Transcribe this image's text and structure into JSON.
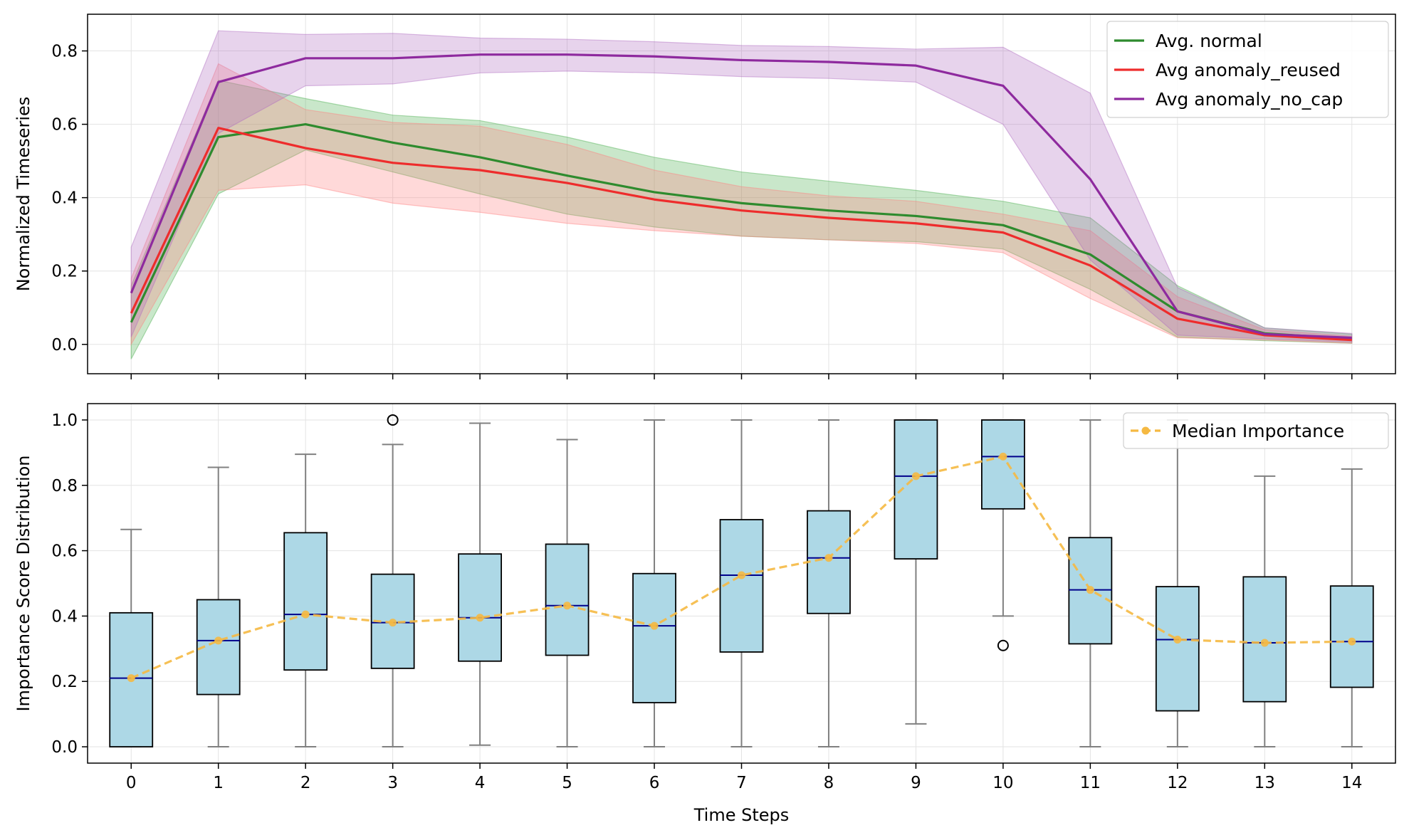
{
  "chart_data": [
    {
      "type": "line",
      "panel": "top",
      "ylabel": "Normalized Timeseries",
      "xlabel": "",
      "x": [
        0,
        1,
        2,
        3,
        4,
        5,
        6,
        7,
        8,
        9,
        10,
        11,
        12,
        13,
        14
      ],
      "xlim": [
        -0.5,
        14.5
      ],
      "ylim": [
        -0.08,
        0.9
      ],
      "yticks": [
        0.0,
        0.2,
        0.4,
        0.6,
        0.8
      ],
      "ytick_labels": [
        "0.0",
        "0.2",
        "0.4",
        "0.6",
        "0.8"
      ],
      "grid": true,
      "legend_position": "top-right",
      "series": [
        {
          "name": "Avg. normal",
          "color": "#2e8b2e",
          "band_color": "#4caf50",
          "values": [
            0.06,
            0.565,
            0.6,
            0.55,
            0.51,
            0.46,
            0.415,
            0.385,
            0.365,
            0.35,
            0.325,
            0.245,
            0.09,
            0.03,
            0.015
          ],
          "lower": [
            -0.04,
            0.41,
            0.53,
            0.47,
            0.41,
            0.355,
            0.32,
            0.295,
            0.285,
            0.28,
            0.26,
            0.15,
            0.02,
            0.01,
            0.003
          ],
          "upper": [
            0.16,
            0.72,
            0.67,
            0.625,
            0.61,
            0.565,
            0.51,
            0.47,
            0.445,
            0.42,
            0.39,
            0.345,
            0.16,
            0.045,
            0.028
          ]
        },
        {
          "name": "Avg anomaly_reused",
          "color": "#ee2c2c",
          "band_color": "#ff8080",
          "values": [
            0.085,
            0.59,
            0.535,
            0.495,
            0.475,
            0.44,
            0.395,
            0.365,
            0.345,
            0.33,
            0.305,
            0.215,
            0.07,
            0.025,
            0.012
          ],
          "lower": [
            0.0,
            0.42,
            0.435,
            0.385,
            0.36,
            0.33,
            0.31,
            0.295,
            0.285,
            0.275,
            0.25,
            0.125,
            0.018,
            0.012,
            0.003
          ],
          "upper": [
            0.18,
            0.765,
            0.64,
            0.605,
            0.595,
            0.545,
            0.475,
            0.43,
            0.405,
            0.39,
            0.355,
            0.31,
            0.13,
            0.04,
            0.022
          ]
        },
        {
          "name": "Avg anomaly_no_cap",
          "color": "#8e2a9e",
          "band_color": "#b06cc0",
          "values": [
            0.14,
            0.715,
            0.78,
            0.78,
            0.79,
            0.79,
            0.785,
            0.775,
            0.77,
            0.76,
            0.705,
            0.45,
            0.09,
            0.028,
            0.018
          ],
          "lower": [
            0.02,
            0.575,
            0.705,
            0.71,
            0.74,
            0.745,
            0.74,
            0.73,
            0.725,
            0.715,
            0.6,
            0.23,
            0.025,
            0.015,
            0.006
          ],
          "upper": [
            0.265,
            0.855,
            0.845,
            0.848,
            0.835,
            0.832,
            0.825,
            0.815,
            0.812,
            0.805,
            0.81,
            0.685,
            0.155,
            0.045,
            0.03
          ]
        }
      ]
    },
    {
      "type": "box",
      "panel": "bottom",
      "ylabel": "Importance Score Distribution",
      "xlabel": "Time Steps",
      "categories": [
        "0",
        "1",
        "2",
        "3",
        "4",
        "5",
        "6",
        "7",
        "8",
        "9",
        "10",
        "11",
        "12",
        "13",
        "14"
      ],
      "xlim": [
        -0.5,
        14.5
      ],
      "ylim": [
        -0.05,
        1.05
      ],
      "yticks": [
        0.0,
        0.2,
        0.4,
        0.6,
        0.8,
        1.0
      ],
      "ytick_labels": [
        "0.0",
        "0.2",
        "0.4",
        "0.6",
        "0.8",
        "1.0"
      ],
      "grid": true,
      "legend_position": "top-right",
      "box_fill": "#add8e6",
      "median_color": "#00008b",
      "whisker_color": "#808080",
      "boxes": [
        {
          "whislo": 0.0,
          "q1": 0.0,
          "med": 0.21,
          "q3": 0.41,
          "whishi": 0.665,
          "fliers": []
        },
        {
          "whislo": 0.0,
          "q1": 0.16,
          "med": 0.325,
          "q3": 0.45,
          "whishi": 0.855,
          "fliers": []
        },
        {
          "whislo": 0.0,
          "q1": 0.235,
          "med": 0.405,
          "q3": 0.655,
          "whishi": 0.895,
          "fliers": []
        },
        {
          "whislo": 0.0,
          "q1": 0.24,
          "med": 0.38,
          "q3": 0.528,
          "whishi": 0.925,
          "fliers": [
            1.0
          ]
        },
        {
          "whislo": 0.005,
          "q1": 0.262,
          "med": 0.395,
          "q3": 0.59,
          "whishi": 0.99,
          "fliers": []
        },
        {
          "whislo": 0.0,
          "q1": 0.28,
          "med": 0.432,
          "q3": 0.62,
          "whishi": 0.94,
          "fliers": []
        },
        {
          "whislo": 0.0,
          "q1": 0.135,
          "med": 0.37,
          "q3": 0.53,
          "whishi": 1.0,
          "fliers": []
        },
        {
          "whislo": 0.0,
          "q1": 0.29,
          "med": 0.525,
          "q3": 0.695,
          "whishi": 1.0,
          "fliers": []
        },
        {
          "whislo": 0.0,
          "q1": 0.408,
          "med": 0.578,
          "q3": 0.722,
          "whishi": 1.0,
          "fliers": []
        },
        {
          "whislo": 0.07,
          "q1": 0.575,
          "med": 0.828,
          "q3": 1.0,
          "whishi": 1.0,
          "fliers": []
        },
        {
          "whislo": 0.4,
          "q1": 0.728,
          "med": 0.888,
          "q3": 1.0,
          "whishi": 1.0,
          "fliers": [
            0.31
          ]
        },
        {
          "whislo": 0.0,
          "q1": 0.315,
          "med": 0.48,
          "q3": 0.64,
          "whishi": 1.0,
          "fliers": []
        },
        {
          "whislo": 0.0,
          "q1": 0.11,
          "med": 0.328,
          "q3": 0.49,
          "whishi": 1.0,
          "fliers": []
        },
        {
          "whislo": 0.0,
          "q1": 0.138,
          "med": 0.318,
          "q3": 0.52,
          "whishi": 0.828,
          "fliers": []
        },
        {
          "whislo": 0.0,
          "q1": 0.182,
          "med": 0.322,
          "q3": 0.492,
          "whishi": 0.85,
          "fliers": []
        }
      ],
      "median_series": {
        "name": "Median Importance",
        "color": "#f5b942",
        "values": [
          0.21,
          0.325,
          0.405,
          0.38,
          0.395,
          0.432,
          0.37,
          0.525,
          0.578,
          0.828,
          0.888,
          0.48,
          0.328,
          0.318,
          0.322
        ]
      }
    }
  ]
}
